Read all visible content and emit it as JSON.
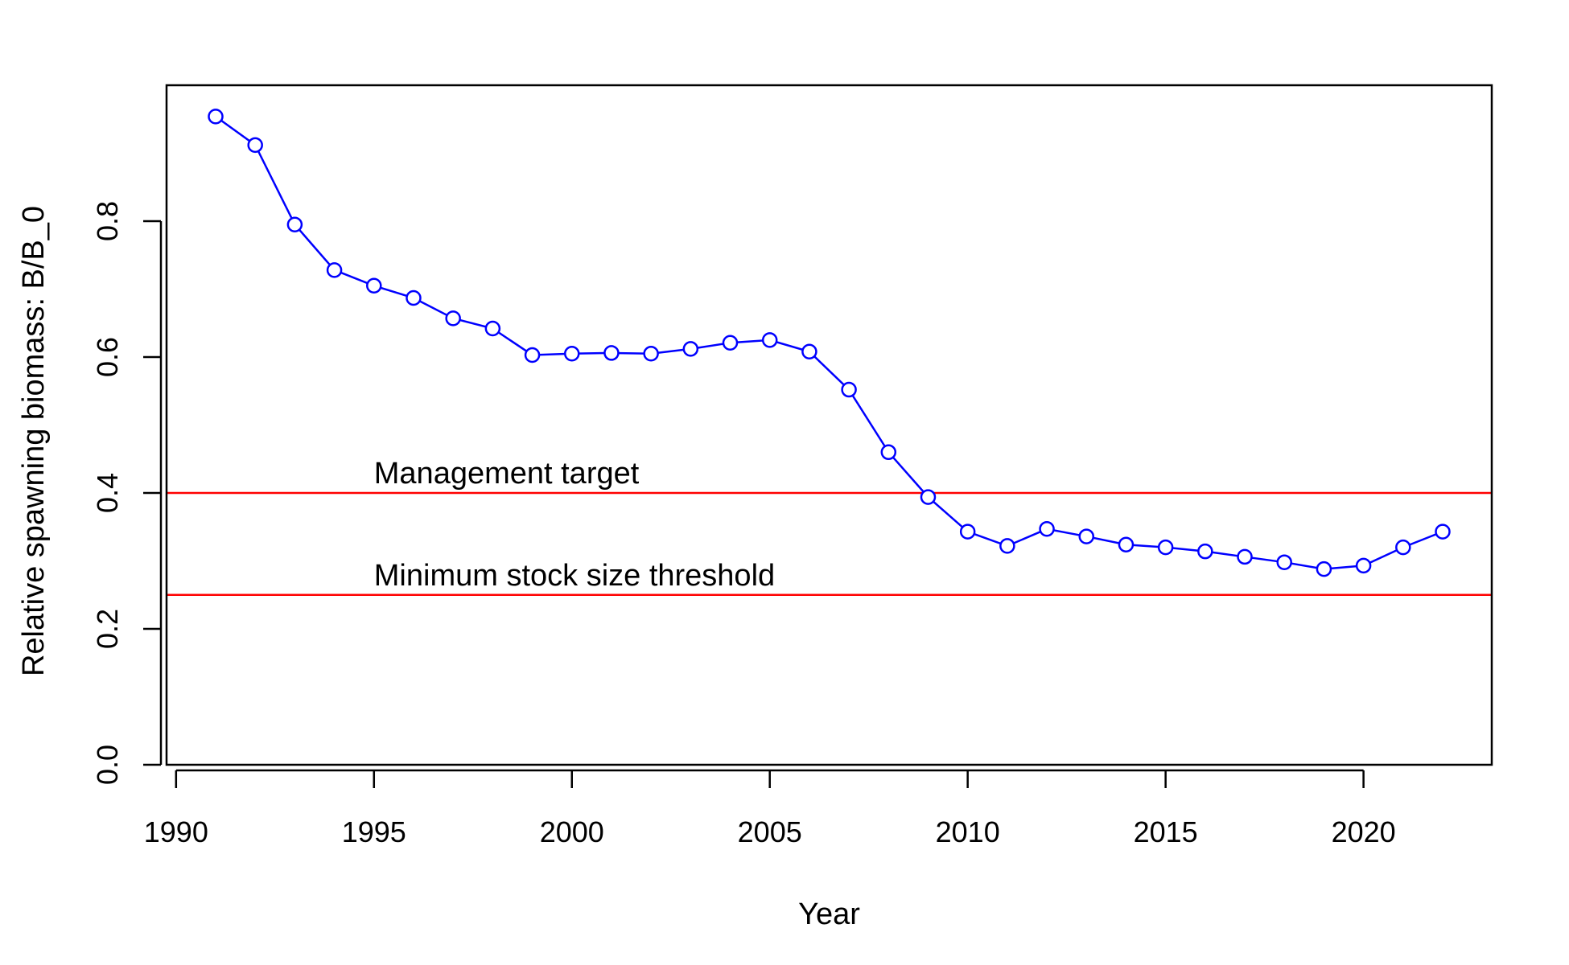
{
  "chart_data": {
    "type": "line",
    "title": "",
    "xlabel": "Year",
    "ylabel": "Relative spawning biomass: B/B_0",
    "xlim": [
      1989.76,
      2023.24
    ],
    "ylim": [
      0,
      1.0
    ],
    "x_ticks": [
      "1990",
      "1995",
      "2000",
      "2005",
      "2010",
      "2015",
      "2020"
    ],
    "y_ticks": [
      "0.0",
      "0.2",
      "0.4",
      "0.6",
      "0.8"
    ],
    "grid": false,
    "legend": "none",
    "series": [
      {
        "color": "#0000ff",
        "marker": "open-circle",
        "x": [
          1991,
          1992,
          1993,
          1994,
          1995,
          1996,
          1997,
          1998,
          1999,
          2000,
          2001,
          2002,
          2003,
          2004,
          2005,
          2006,
          2007,
          2008,
          2009,
          2010,
          2011,
          2012,
          2013,
          2014,
          2015,
          2016,
          2017,
          2018,
          2019,
          2020,
          2021,
          2022
        ],
        "y": [
          0.954,
          0.912,
          0.795,
          0.728,
          0.705,
          0.687,
          0.657,
          0.642,
          0.603,
          0.605,
          0.606,
          0.605,
          0.612,
          0.621,
          0.625,
          0.608,
          0.552,
          0.46,
          0.394,
          0.343,
          0.322,
          0.347,
          0.336,
          0.324,
          0.32,
          0.314,
          0.306,
          0.298,
          0.288,
          0.293,
          0.32,
          0.343
        ]
      }
    ],
    "reference_lines": [
      {
        "y": 0.4,
        "color": "#ff0000",
        "label": "Management target",
        "label_x": 1995
      },
      {
        "y": 0.25,
        "color": "#ff0000",
        "label": "Minimum stock size threshold",
        "label_x": 1995
      }
    ]
  }
}
